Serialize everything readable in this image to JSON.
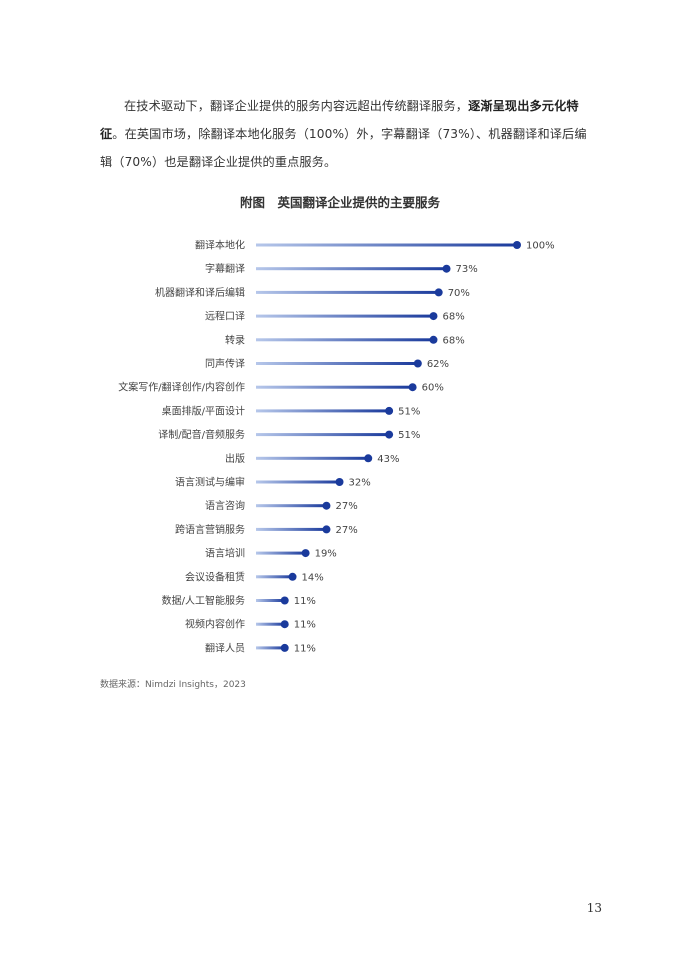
{
  "paragraph": {
    "part1": "在技术驱动下，翻译企业提供的服务内容远超出传统翻译服务，",
    "bold": "逐渐呈现出多元化特征",
    "part2": "。在英国市场，除翻译本地化服务（100%）外，字幕翻译（73%）、机器翻译和译后编辑（70%）也是翻译企业提供的重点服务。"
  },
  "figure_title": "附图　英国翻译企业提供的主要服务",
  "chart_data": {
    "type": "bar",
    "orientation": "horizontal",
    "categories": [
      "翻译本地化",
      "字幕翻译",
      "机器翻译和译后编辑",
      "远程口译",
      "转录",
      "同声传译",
      "文案写作/翻译创作/内容创作",
      "桌面排版/平面设计",
      "译制/配音/音频服务",
      "出版",
      "语言测试与编审",
      "语言咨询",
      "跨语言营销服务",
      "语言培训",
      "会议设备租赁",
      "数据/人工智能服务",
      "视频内容创作",
      "翻译人员"
    ],
    "values": [
      100,
      73,
      70,
      68,
      68,
      62,
      60,
      51,
      51,
      43,
      32,
      27,
      27,
      19,
      14,
      11,
      11,
      11
    ],
    "value_labels": [
      "100%",
      "73%",
      "70%",
      "68%",
      "68%",
      "62%",
      "60%",
      "51%",
      "51%",
      "43%",
      "32%",
      "27%",
      "27%",
      "19%",
      "14%",
      "11%",
      "11%",
      "11%"
    ],
    "xlim": [
      0,
      100
    ],
    "colors": {
      "bar_start": "#b6c7ea",
      "bar_end": "#1a3a9c",
      "dot": "#1a3a9c"
    },
    "grid": false,
    "legend": false
  },
  "source": "数据来源：Nimdzi Insights，2023",
  "page_number": "13"
}
